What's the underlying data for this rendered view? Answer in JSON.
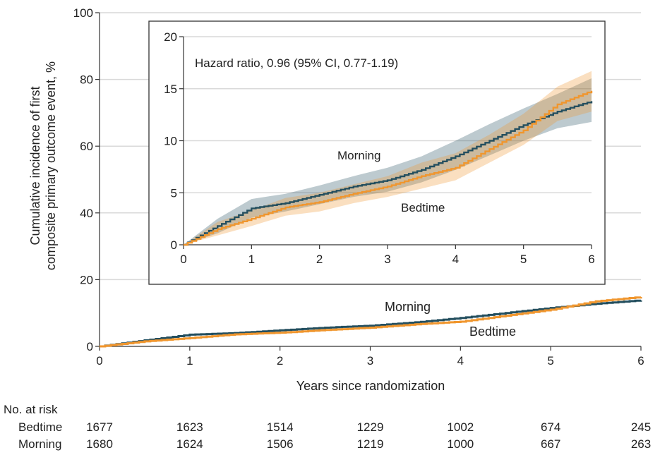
{
  "chart_data": {
    "type": "line",
    "xlabel": "Years since randomization",
    "ylabel_line1": "Cumulative incidence of first",
    "ylabel_line2": "composite primary outcome event, %",
    "xlim": [
      0,
      6
    ],
    "ylim": [
      0,
      100
    ],
    "xticks": [
      "0",
      "1",
      "2",
      "3",
      "4",
      "5",
      "6"
    ],
    "yticks": [
      "0",
      "20",
      "40",
      "60",
      "80",
      "100"
    ],
    "series": [
      {
        "name": "Morning",
        "color": "#244f5f",
        "x": [
          0,
          0.5,
          1,
          1.5,
          2,
          2.5,
          3,
          3.5,
          4,
          4.5,
          5,
          5.5,
          6
        ],
        "values": [
          0,
          1.8,
          3.5,
          4.0,
          4.8,
          5.6,
          6.2,
          7.2,
          8.5,
          10.0,
          11.5,
          12.8,
          13.8
        ]
      },
      {
        "name": "Bedtime",
        "color": "#f0962e",
        "x": [
          0,
          0.5,
          1,
          1.5,
          2,
          2.5,
          3,
          3.5,
          4,
          4.5,
          5,
          5.5,
          6
        ],
        "values": [
          0,
          1.5,
          2.5,
          3.6,
          4.1,
          4.9,
          5.6,
          6.6,
          7.4,
          9.2,
          11.0,
          13.5,
          14.8
        ]
      }
    ],
    "inset": {
      "xlim": [
        0,
        6
      ],
      "ylim": [
        0,
        20
      ],
      "xticks": [
        "0",
        "1",
        "2",
        "3",
        "4",
        "5",
        "6"
      ],
      "yticks": [
        "0",
        "5",
        "10",
        "15",
        "20"
      ],
      "annotation": "Hazard ratio, 0.96 (95% CI, 0.77-1.19)",
      "ci_bands": [
        {
          "name": "Morning",
          "color": "#244f5f",
          "lower": [
            0,
            1.1,
            2.6,
            3.2,
            3.9,
            4.6,
            5.1,
            6.0,
            7.2,
            8.6,
            10.0,
            11.2,
            11.8
          ],
          "upper": [
            0,
            2.5,
            4.4,
            4.9,
            5.7,
            6.6,
            7.4,
            8.5,
            10.0,
            11.6,
            13.1,
            14.5,
            16.0
          ]
        },
        {
          "name": "Bedtime",
          "color": "#f0962e",
          "lower": [
            0,
            0.9,
            1.8,
            2.8,
            3.2,
            4.0,
            4.6,
            5.4,
            6.2,
            7.9,
            9.6,
            11.9,
            12.8
          ],
          "upper": [
            0,
            2.2,
            3.3,
            4.5,
            5.0,
            5.8,
            6.6,
            7.9,
            8.8,
            10.6,
            12.6,
            15.2,
            16.7
          ]
        }
      ]
    }
  },
  "labels": {
    "morning": "Morning",
    "bedtime": "Bedtime"
  },
  "risk_table": {
    "title": "No. at risk",
    "rows": [
      {
        "label": "Bedtime",
        "values": [
          "1677",
          "1623",
          "1514",
          "1229",
          "1002",
          "674",
          "245"
        ]
      },
      {
        "label": "Morning",
        "values": [
          "1680",
          "1624",
          "1506",
          "1219",
          "1000",
          "667",
          "263"
        ]
      }
    ]
  }
}
